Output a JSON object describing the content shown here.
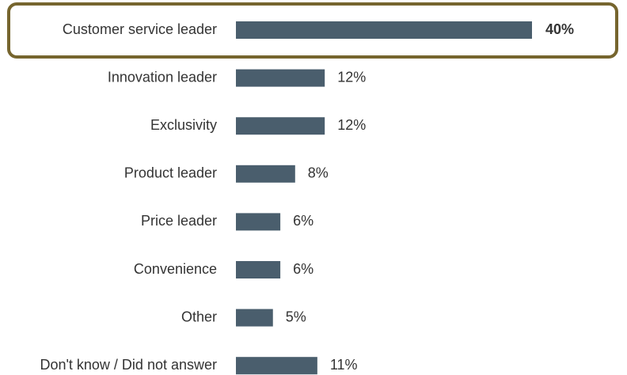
{
  "chart_data": {
    "type": "bar",
    "orientation": "horizontal",
    "categories": [
      "Customer service leader",
      "Innovation leader",
      "Exclusivity",
      "Product leader",
      "Price leader",
      "Convenience",
      "Other",
      "Don't know / Did not answer"
    ],
    "values": [
      40,
      12,
      12,
      8,
      6,
      6,
      5,
      11
    ],
    "value_labels": [
      "40%",
      "12%",
      "12%",
      "8%",
      "6%",
      "6%",
      "5%",
      "11%"
    ],
    "color": "#4a5e6d"
  }
}
